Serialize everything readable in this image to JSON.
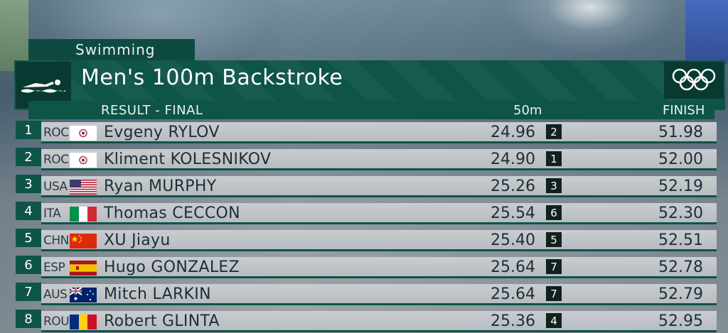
{
  "sport": "Swimming",
  "event_title": "Men's 100m Backstroke",
  "header": {
    "result_label": "RESULT - FINAL",
    "split_label": "50m",
    "finish_label": "FINISH"
  },
  "icons": {
    "swimmer": "swimmer-icon",
    "olympic": "olympic-rings-icon"
  },
  "colors": {
    "panel_green": "#0e5447",
    "dark_green": "#083a32",
    "row_grey": "#c3c7ca"
  },
  "results": [
    {
      "rank": "1",
      "noc": "ROC",
      "flag": "roc",
      "name": "Evgeny RYLOV",
      "split": "24.96",
      "split_pos": "2",
      "finish": "51.98"
    },
    {
      "rank": "2",
      "noc": "ROC",
      "flag": "roc",
      "name": "Kliment KOLESNIKOV",
      "split": "24.90",
      "split_pos": "1",
      "finish": "52.00"
    },
    {
      "rank": "3",
      "noc": "USA",
      "flag": "usa",
      "name": "Ryan MURPHY",
      "split": "25.26",
      "split_pos": "3",
      "finish": "52.19"
    },
    {
      "rank": "4",
      "noc": "ITA",
      "flag": "ita",
      "name": "Thomas CECCON",
      "split": "25.54",
      "split_pos": "6",
      "finish": "52.30"
    },
    {
      "rank": "5",
      "noc": "CHN",
      "flag": "chn",
      "name": "XU Jiayu",
      "split": "25.40",
      "split_pos": "5",
      "finish": "52.51"
    },
    {
      "rank": "6",
      "noc": "ESP",
      "flag": "esp",
      "name": "Hugo GONZALEZ",
      "split": "25.64",
      "split_pos": "7",
      "finish": "52.78"
    },
    {
      "rank": "7",
      "noc": "AUS",
      "flag": "aus",
      "name": "Mitch LARKIN",
      "split": "25.64",
      "split_pos": "7",
      "finish": "52.79"
    },
    {
      "rank": "8",
      "noc": "ROU",
      "flag": "rou",
      "name": "Robert GLINTA",
      "split": "25.36",
      "split_pos": "4",
      "finish": "52.95"
    }
  ]
}
